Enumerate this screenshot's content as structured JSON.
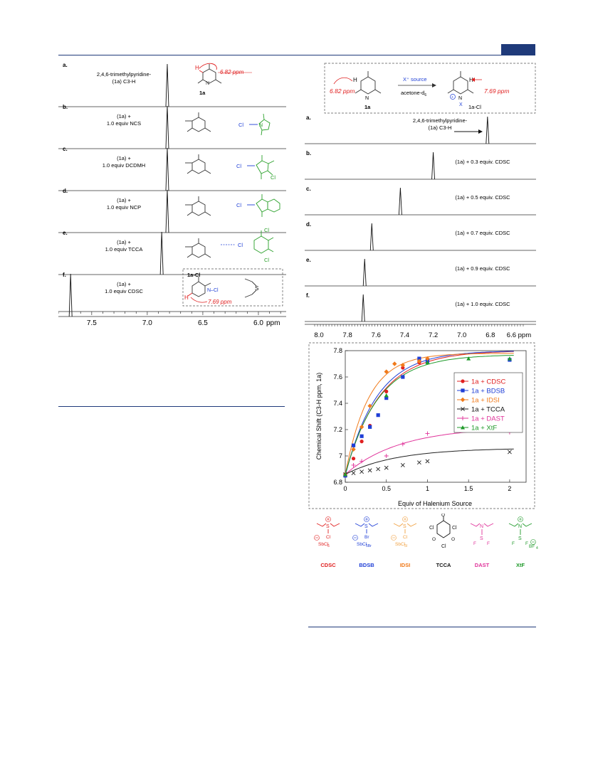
{
  "left_panel": {
    "rows": [
      {
        "letter": "a.",
        "desc1": "2,4,6-trimethylpyridine-",
        "desc2": "(1a) C3-H",
        "reagent": "",
        "peak_ppm": 6.82
      },
      {
        "letter": "b.",
        "desc1": "(1a) +",
        "desc2": "1.0 equiv NCS",
        "reagent": "NCS",
        "peak_ppm": 6.82
      },
      {
        "letter": "c.",
        "desc1": "(1a) +",
        "desc2": "1.0 equiv DCDMH",
        "reagent": "DCDMH",
        "peak_ppm": 6.82
      },
      {
        "letter": "d.",
        "desc1": "(1a) +",
        "desc2": "1.0 equiv NCP",
        "reagent": "NCP",
        "peak_ppm": 6.82
      },
      {
        "letter": "e.",
        "desc1": "(1a) +",
        "desc2": "1.0 equiv TCCA",
        "reagent": "TCCA",
        "peak_ppm": 6.87
      },
      {
        "letter": "f.",
        "desc1": "(1a) +",
        "desc2": "1.0 equiv CDSC",
        "reagent": "CDSC",
        "peak_ppm": 7.69
      }
    ],
    "annot_a_shift": "6.82 ppm",
    "annot_a_label": "1a",
    "annot_f_label": "1a-Cl",
    "annot_f_shift": "7.69 ppm",
    "axis_ticks": [
      "7.5",
      "7.0",
      "6.5",
      "6.0"
    ],
    "axis_unit": "ppm",
    "axis_range": [
      7.8,
      5.75
    ]
  },
  "scheme": {
    "left_shift": "6.82 ppm",
    "right_shift": "7.69 ppm",
    "arrow_top": "X⁺ source",
    "arrow_bottom": "acetone-d",
    "arrow_bottom_sub": "6",
    "left_label": "1a",
    "right_label": "1a-Cl",
    "x_label": "X"
  },
  "right_panel": {
    "rows": [
      {
        "letter": "a.",
        "desc": "2,4,6-trimethylpyridine-",
        "desc2": "(1a) C3-H",
        "peak_ppm": 6.82
      },
      {
        "letter": "b.",
        "desc": "(1a) + 0.3 equiv. CDSC",
        "peak_ppm": 7.2
      },
      {
        "letter": "c.",
        "desc": "(1a) + 0.5 equiv. CDSC",
        "peak_ppm": 7.43
      },
      {
        "letter": "d.",
        "desc": "(1a) + 0.7 equiv. CDSC",
        "peak_ppm": 7.63
      },
      {
        "letter": "e.",
        "desc": "(1a) + 0.9 equiv. CDSC",
        "peak_ppm": 7.68
      },
      {
        "letter": "f.",
        "desc": "(1a) + 1.0 equiv. CDSC",
        "peak_ppm": 7.69
      }
    ],
    "axis_ticks": [
      "8.0",
      "7.8",
      "7.6",
      "7.4",
      "7.2",
      "7.0",
      "6.8",
      "6.6 ppm"
    ],
    "axis_range": [
      8.03,
      6.55
    ]
  },
  "chart_data": {
    "type": "scatter",
    "xlabel": "Equiv of Halenium Source",
    "ylabel": "Chemical Shift (C3-H ppm, 1a)",
    "xlim": [
      0,
      2.2
    ],
    "ylim": [
      6.8,
      7.8
    ],
    "x_ticks": [
      "0",
      "0.5",
      "1",
      "1.5",
      "2"
    ],
    "y_ticks": [
      "6.8",
      "7",
      "7.2",
      "7.4",
      "7.6",
      "7.8"
    ],
    "legend_position": "right",
    "series": [
      {
        "name": "1a + CDSC",
        "color": "#e02020",
        "marker": "circle",
        "x": [
          0,
          0.1,
          0.2,
          0.3,
          0.5,
          0.7,
          0.9,
          1.0
        ],
        "y": [
          6.86,
          6.98,
          7.11,
          7.23,
          7.49,
          7.67,
          7.71,
          7.73
        ],
        "fit": {
          "plateau": 7.8,
          "k": 2.4
        }
      },
      {
        "name": "1a + BDSB",
        "color": "#1f3fd6",
        "marker": "square",
        "x": [
          0,
          0.1,
          0.2,
          0.3,
          0.4,
          0.5,
          0.7,
          0.9,
          1.0,
          2.0
        ],
        "y": [
          6.85,
          7.08,
          7.15,
          7.22,
          7.31,
          7.44,
          7.6,
          7.74,
          7.72,
          7.73
        ],
        "fit": {
          "plateau": 7.8,
          "k": 2.6
        }
      },
      {
        "name": "1a + IDSI",
        "color": "#f07a1a",
        "marker": "diamond",
        "x": [
          0,
          0.1,
          0.2,
          0.3,
          0.5,
          0.6,
          0.7,
          0.9,
          1.0
        ],
        "y": [
          6.86,
          7.05,
          7.22,
          7.38,
          7.64,
          7.7,
          7.69,
          7.72,
          7.74
        ],
        "fit": {
          "plateau": 7.78,
          "k": 3.5
        }
      },
      {
        "name": "1a + TCCA",
        "color": "#222222",
        "marker": "x",
        "x": [
          0,
          0.1,
          0.2,
          0.3,
          0.4,
          0.5,
          0.7,
          0.9,
          1.0,
          2.0
        ],
        "y": [
          6.86,
          6.87,
          6.88,
          6.89,
          6.9,
          6.91,
          6.93,
          6.95,
          6.96,
          7.03
        ],
        "fit": {
          "plateau": 7.06,
          "k": 1.6
        }
      },
      {
        "name": "1a + DAST",
        "color": "#e0339a",
        "marker": "plus",
        "x": [
          0,
          0.1,
          0.2,
          0.5,
          0.7,
          1.0,
          2.0
        ],
        "y": [
          6.86,
          6.93,
          6.96,
          7.0,
          7.09,
          7.17,
          7.18
        ],
        "fit": {
          "plateau": 7.22,
          "k": 1.5
        }
      },
      {
        "name": "1a + XtF",
        "color": "#1f9a2a",
        "marker": "triangle",
        "x": [
          0,
          0.5,
          1.0,
          1.5,
          2.0
        ],
        "y": [
          6.86,
          7.46,
          7.71,
          7.74,
          7.74
        ],
        "fit": {
          "plateau": 7.77,
          "k": 2.5
        }
      }
    ]
  },
  "reagents": [
    {
      "name": "CDSC",
      "color": "#e02020",
      "a1": "Cl",
      "a2": "SbCl",
      "a2sub": "6"
    },
    {
      "name": "BDSB",
      "color": "#1f3fd6",
      "a1": "Br",
      "a2": "SbCl",
      "a2sub": "5Br"
    },
    {
      "name": "IDSI",
      "color": "#f0a040",
      "a1": "Cl",
      "a2": "SbCl",
      "a2sub": "5I"
    },
    {
      "name": "TCCA",
      "color": "#111111",
      "a1": "Cl",
      "a2": "",
      "a2sub": ""
    },
    {
      "name": "DAST",
      "color": "#e0339a",
      "a1": "F",
      "a2": "",
      "a2sub": ""
    },
    {
      "name": "XtF",
      "color": "#1f9a2a",
      "a1": "F",
      "a2": "BF",
      "a2sub": "4"
    }
  ],
  "colors": {
    "header_blue": "#1f3a7a",
    "annotation_red": "#e02020",
    "reagent_green": "#2aa02a",
    "label_blue": "#1f3fd6"
  }
}
